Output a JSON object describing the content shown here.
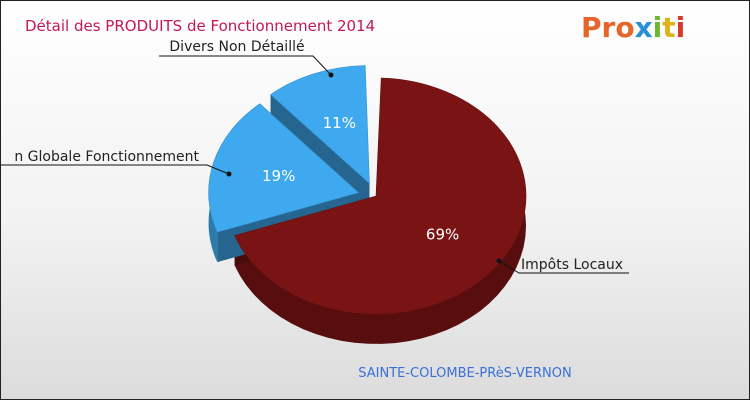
{
  "chart_data": {
    "type": "pie",
    "title": "Détail des PRODUITS de Fonctionnement 2014",
    "labels": [
      "Impôts Locaux",
      "Dotation Globale Fonctionnement",
      "Divers Non Détaillé"
    ],
    "label_text": [
      "Impôts Locaux",
      "n Globale Fonctionnement",
      "Divers Non Détaillé"
    ],
    "values": [
      69,
      19,
      11
    ],
    "value_labels": [
      "69%",
      "19%",
      "11%"
    ],
    "colors": [
      "#7a1414",
      "#3fa9ef",
      "#3fa9ef"
    ],
    "legend": "none"
  },
  "brand": {
    "name": "Proxiti",
    "letters": [
      "P",
      "r",
      "o",
      "x",
      "i",
      "t",
      "i"
    ],
    "letter_colors": [
      "#e6662a",
      "#e6662a",
      "#e6662a",
      "#2a8fd8",
      "#6cb82e",
      "#e0b21a",
      "#d63a2a"
    ]
  },
  "commune": "SAINTE-COLOMBE-PRèS-VERNON",
  "colors": {
    "title": "#c2185b",
    "commune": "#3a6fd8"
  }
}
